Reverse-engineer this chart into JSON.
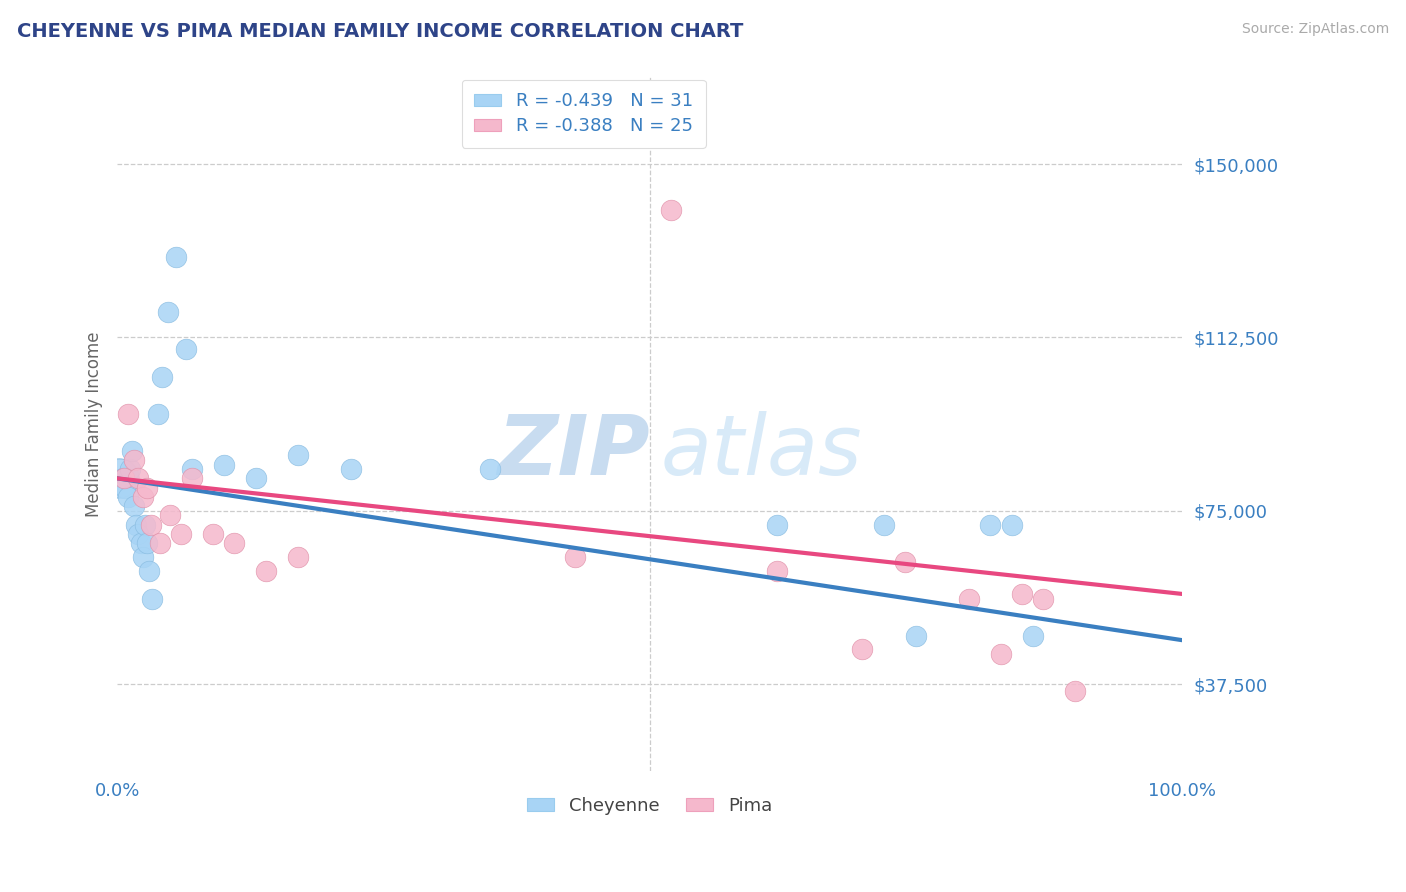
{
  "title": "CHEYENNE VS PIMA MEDIAN FAMILY INCOME CORRELATION CHART",
  "title_color": "#2E4488",
  "source_text": "Source: ZipAtlas.com",
  "ylabel": "Median Family Income",
  "xlim": [
    0.0,
    1.0
  ],
  "ylim": [
    18750,
    168750
  ],
  "yticks": [
    37500,
    75000,
    112500,
    150000
  ],
  "ytick_labels": [
    "$37,500",
    "$75,000",
    "$112,500",
    "$150,000"
  ],
  "cheyenne_color": "#A8D4F5",
  "pima_color": "#F5B8CC",
  "cheyenne_line_color": "#3A7FC1",
  "pima_line_color": "#E84880",
  "legend_label_cheyenne": "R = -0.439   N = 31",
  "legend_label_pima": "R = -0.388   N = 25",
  "watermark_zip": "ZIP",
  "watermark_atlas": "atlas",
  "background_color": "#FFFFFF",
  "grid_color": "#CCCCCC",
  "axis_label_color": "#3A7FC1",
  "cheyenne_x": [
    0.005,
    0.007,
    0.01,
    0.012,
    0.014,
    0.016,
    0.018,
    0.02,
    0.022,
    0.024,
    0.026,
    0.028,
    0.03,
    0.033,
    0.038,
    0.042,
    0.048,
    0.055,
    0.065,
    0.07,
    0.1,
    0.13,
    0.17,
    0.22,
    0.35,
    0.62,
    0.72,
    0.75,
    0.82,
    0.84,
    0.86
  ],
  "cheyenne_y": [
    82000,
    80000,
    78000,
    84000,
    88000,
    76000,
    72000,
    70000,
    68000,
    65000,
    72000,
    68000,
    62000,
    56000,
    96000,
    104000,
    118000,
    130000,
    110000,
    84000,
    85000,
    82000,
    87000,
    84000,
    84000,
    72000,
    72000,
    48000,
    72000,
    72000,
    48000
  ],
  "pima_x": [
    0.006,
    0.01,
    0.016,
    0.02,
    0.024,
    0.028,
    0.032,
    0.04,
    0.05,
    0.06,
    0.07,
    0.09,
    0.11,
    0.14,
    0.17,
    0.43,
    0.52,
    0.62,
    0.7,
    0.74,
    0.8,
    0.83,
    0.85,
    0.87,
    0.9
  ],
  "pima_y": [
    82000,
    96000,
    86000,
    82000,
    78000,
    80000,
    72000,
    68000,
    74000,
    70000,
    82000,
    70000,
    68000,
    62000,
    65000,
    65000,
    140000,
    62000,
    45000,
    64000,
    56000,
    44000,
    57000,
    56000,
    36000
  ],
  "cheyenne_large_x": [
    0.002
  ],
  "cheyenne_large_y": [
    82000
  ],
  "cheyenne_large_size": 800
}
